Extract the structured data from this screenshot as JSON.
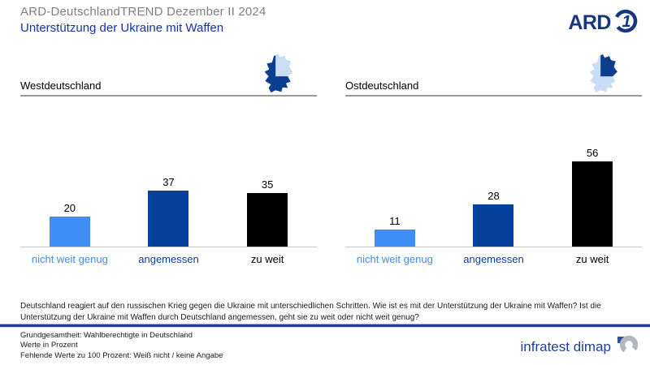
{
  "header": {
    "title": "ARD-DeutschlandTREND Dezember II 2024",
    "subtitle": "Unterstützung der Ukraine mit Waffen",
    "ard_logo_text": "ARD"
  },
  "chart_data": [
    {
      "type": "bar",
      "title": "Westdeutschland",
      "categories": [
        "nicht weit genug",
        "angemessen",
        "zu weit"
      ],
      "values": [
        20,
        37,
        35
      ],
      "unit": "Prozent",
      "ylim": [
        0,
        60
      ],
      "grid": false,
      "legend": "none",
      "bar_colors": [
        "#3f8ef5",
        "#04419c",
        "#000000"
      ]
    },
    {
      "type": "bar",
      "title": "Ostdeutschland",
      "categories": [
        "nicht weit genug",
        "angemessen",
        "zu weit"
      ],
      "values": [
        11,
        28,
        56
      ],
      "unit": "Prozent",
      "ylim": [
        0,
        60
      ],
      "grid": false,
      "legend": "none",
      "bar_colors": [
        "#3f8ef5",
        "#04419c",
        "#000000"
      ]
    }
  ],
  "label_colors": [
    "#3f8ef5",
    "#0b3f9c",
    "#000000"
  ],
  "question": "Deutschland reagiert auf den russischen Krieg gegen die Ukraine mit unterschiedlichen Schritten. Wie ist es mit der Unterstützung der Ukraine mit Waffen? Ist die Unterstützung der Ukraine mit Waffen durch Deutschland angemessen, geht sie zu weit oder nicht weit genug?",
  "footer": {
    "note1": "Grundgesamtheit: Wahlberechtigte in Deutschland",
    "note2": "Werte in Prozent",
    "note3": "Fehlende Werte zu 100 Prozent: Weiß nicht / keine Angabe",
    "source_logo_text": "infratest dimap"
  },
  "colors": {
    "title_gray": "#7f7f7f",
    "subtitle_blue": "#1535a3",
    "map_dark_blue": "#0b3d91",
    "map_light_blue": "#c9ddf4",
    "ard_navy": "#17367d",
    "infratest_blue": "#1d3f97"
  }
}
